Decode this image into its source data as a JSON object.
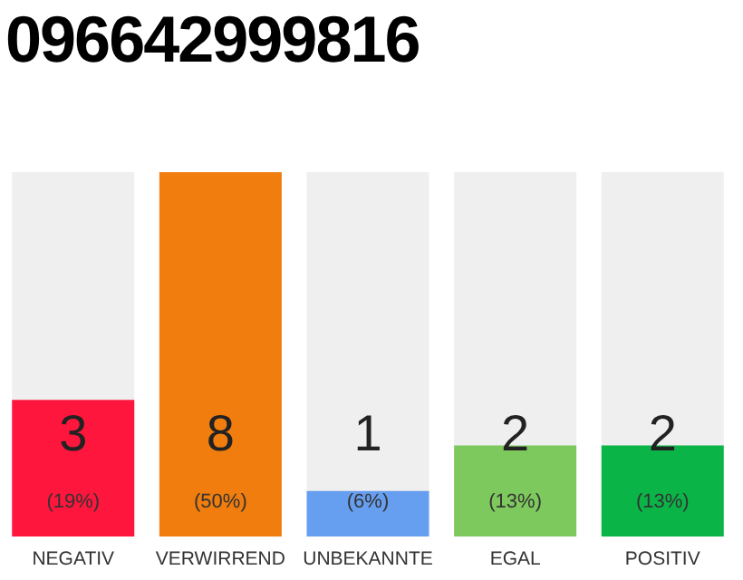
{
  "chart_data": {
    "type": "bar",
    "title": "096642999816",
    "categories": [
      "NEGATIV",
      "VERWIRREND",
      "UNBEKANNTE",
      "EGAL",
      "POSITIV"
    ],
    "values": [
      3,
      8,
      1,
      2,
      2
    ],
    "colors": [
      "#ff163c",
      "#f07d0d",
      "#679ff0",
      "#7ec95e",
      "#0bb447"
    ],
    "data_labels": true,
    "annotations": [
      "(19%)",
      "(50%)",
      "(6%)",
      "(13%)",
      "(13%)"
    ],
    "tick_labels": "x"
  }
}
